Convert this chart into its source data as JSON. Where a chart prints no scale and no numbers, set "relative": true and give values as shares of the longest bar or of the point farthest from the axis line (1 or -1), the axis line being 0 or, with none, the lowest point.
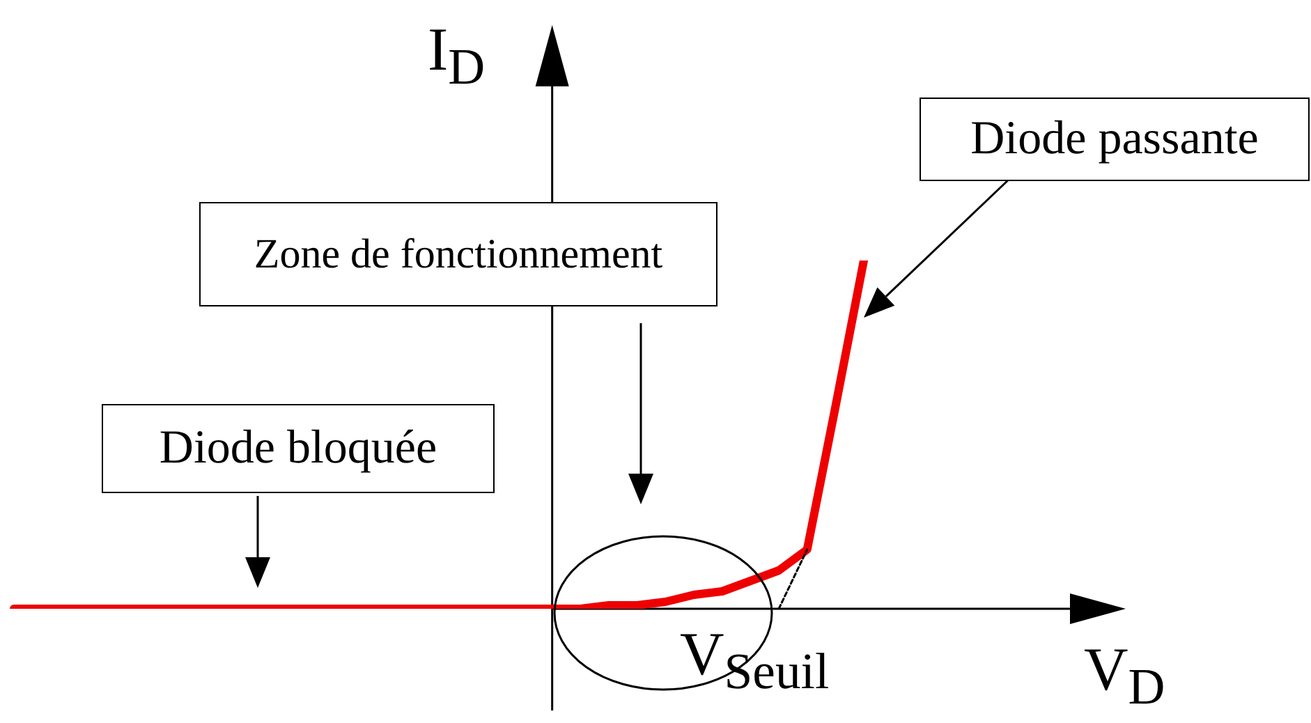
{
  "chart_data": {
    "type": "line",
    "relative": true,
    "xlabel": "V$_{D}$",
    "ylabel": "I$_{D}$",
    "marker": "none",
    "categories": [
      null,
      null,
      null,
      null,
      null,
      null,
      null,
      null,
      null,
      null,
      null,
      null,
      null,
      null,
      null,
      null,
      null,
      null,
      null,
      null,
      null,
      null,
      null,
      null,
      null,
      null,
      null,
      null,
      null,
      null,
      null
    ],
    "series": [
      {
        "color": "#ee0000",
        "values": [
          0,
          0,
          0,
          0,
          0,
          0,
          0,
          0,
          0,
          0,
          0,
          0,
          0,
          0,
          0,
          0,
          0,
          0,
          0,
          0,
          0,
          0.01,
          0.01,
          0.02,
          0.04,
          0.05,
          0.08,
          0.11,
          0.17,
          0.58,
          1
        ]
      },
      {
        "color": "#000000",
        "line_style": "dashed",
        "values": [
          null,
          null,
          null,
          null,
          null,
          null,
          null,
          null,
          null,
          null,
          null,
          null,
          null,
          null,
          null,
          null,
          null,
          null,
          null,
          null,
          null,
          null,
          null,
          null,
          null,
          null,
          null,
          0,
          0.17,
          null,
          null
        ]
      }
    ],
    "annotations": [
      "Diode bloquée",
      "Zone de fonctionnement",
      "Diode passante",
      "V$_{Seuil}$"
    ]
  }
}
